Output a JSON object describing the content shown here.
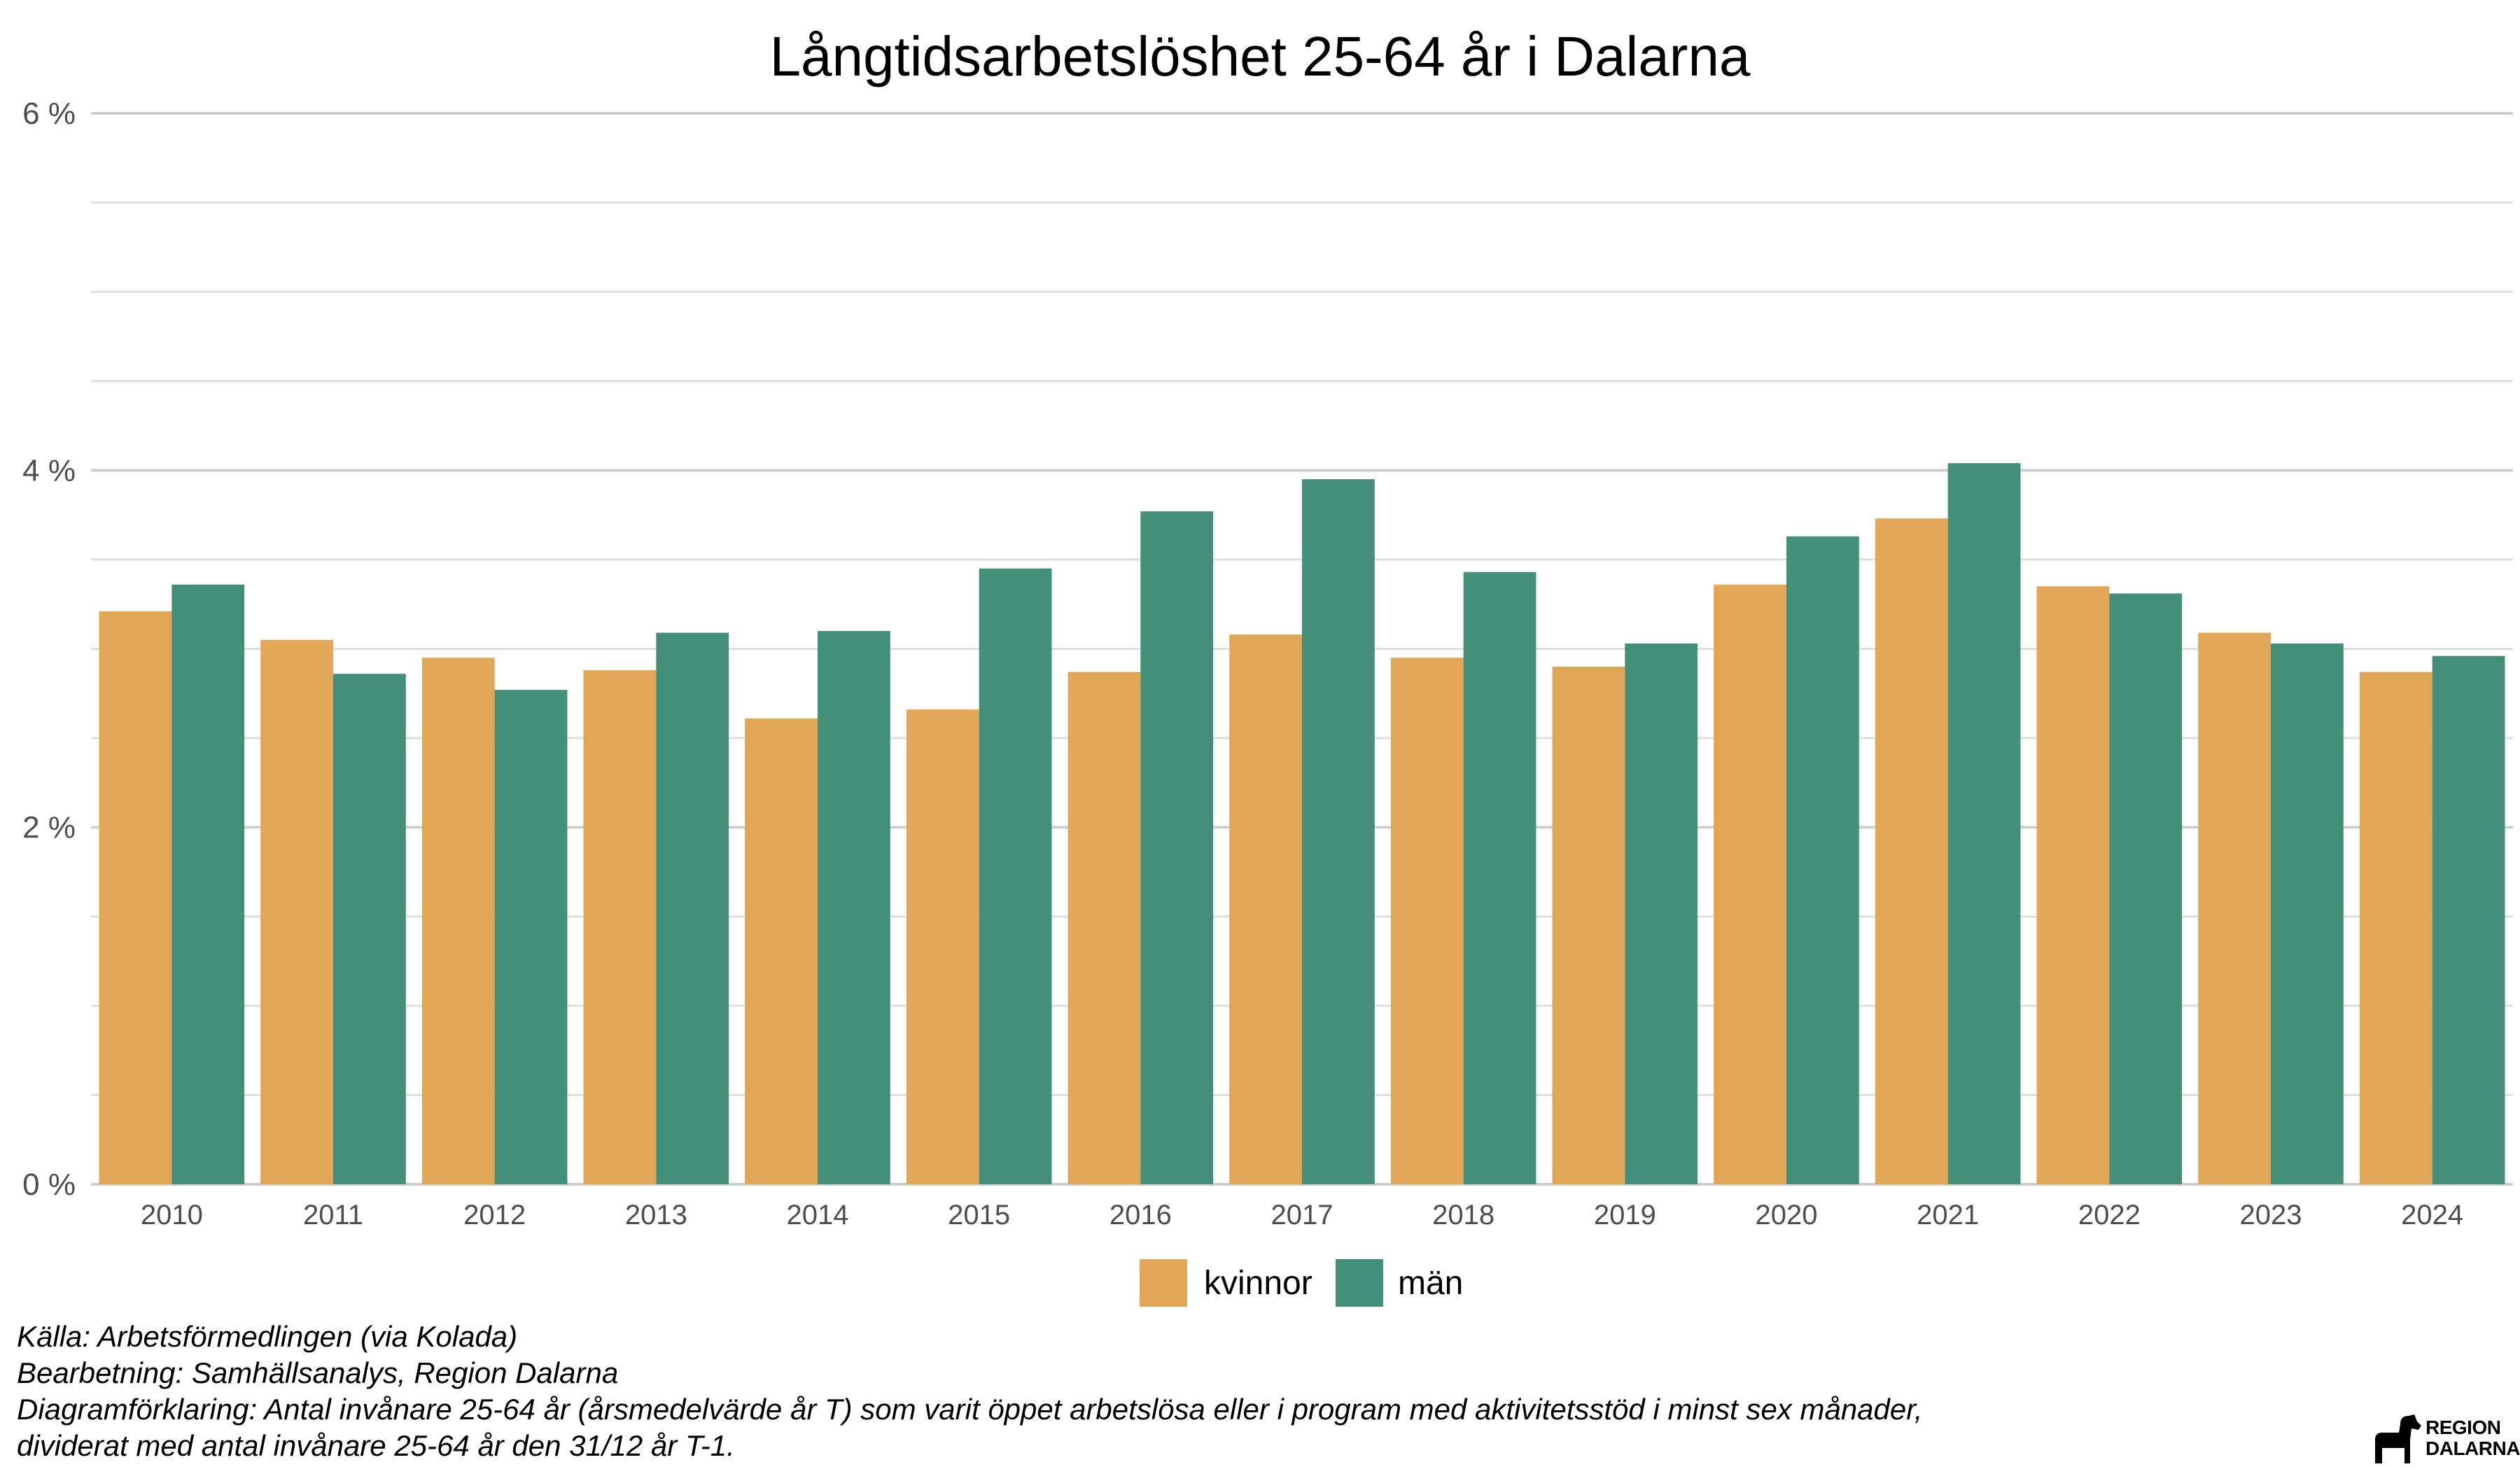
{
  "chart_data": {
    "type": "bar",
    "title": "Långtidsarbetslöshet 25-64 år i Dalarna",
    "xlabel": "",
    "ylabel": "",
    "categories": [
      "2010",
      "2011",
      "2012",
      "2013",
      "2014",
      "2015",
      "2016",
      "2017",
      "2018",
      "2019",
      "2020",
      "2021",
      "2022",
      "2023",
      "2024"
    ],
    "series": [
      {
        "name": "kvinnor",
        "color": "#E1A756",
        "values": [
          3.21,
          3.05,
          2.95,
          2.88,
          2.61,
          2.66,
          2.87,
          3.08,
          2.95,
          2.9,
          3.36,
          3.73,
          3.35,
          3.09,
          2.87
        ]
      },
      {
        "name": "män",
        "color": "#448F7A",
        "values": [
          3.36,
          2.86,
          2.77,
          3.09,
          3.1,
          3.45,
          3.77,
          3.95,
          3.43,
          3.03,
          3.63,
          4.04,
          3.31,
          3.03,
          2.96
        ]
      }
    ],
    "ylim": [
      0,
      6
    ],
    "yticks": [
      0,
      2,
      4,
      6
    ],
    "ytick_labels": [
      "0 %",
      "2 %",
      "4 %",
      "6 %"
    ],
    "grid": true,
    "legend_position": "bottom"
  },
  "footnotes": [
    "Källa: Arbetsförmedlingen (via Kolada)",
    "Bearbetning: Samhällsanalys, Region Dalarna",
    "Diagramförklaring: Antal invånare 25-64 år (årsmedelvärde år T) som varit öppet arbetslösa eller i program med aktivitetsstöd i minst sex månader,",
    "dividerat med antal invånare 25-64 år den 31/12 år T-1."
  ],
  "logo": {
    "line1": "REGION",
    "line2": "DALARNA"
  }
}
